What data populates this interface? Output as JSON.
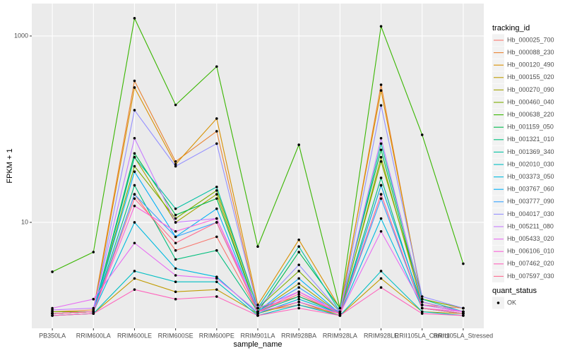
{
  "chart_data": {
    "type": "line",
    "x_label": "sample_name",
    "y_label": "FPKM + 1",
    "y_scale": "log",
    "grid": true,
    "legend_title": "tracking_id",
    "legend_position": "right",
    "legend2_title": "quant_status",
    "legend2_entries": [
      "OK"
    ],
    "point_color": "#000000",
    "categories": [
      "PB350LA",
      "RRIM600LA",
      "RRIM600LE",
      "RRIM600SE",
      "RRIM600PE",
      "RRIM901LA",
      "RRIM928BA",
      "RRIM928LA",
      "RRIM928LE",
      "RRII105LA_Control",
      "RRII105LA_Stressed"
    ],
    "ylim": [
      0.73,
      2230
    ],
    "yticks": [
      10,
      1000
    ],
    "series": [
      {
        "name": "Hb_000025_700",
        "color": "#F8766D",
        "values": [
          1.05,
          1.1,
          20,
          5,
          7,
          1.1,
          1.3,
          1.05,
          25,
          1.3,
          1.2
        ]
      },
      {
        "name": "Hb_000088_230",
        "color": "#EA8331",
        "values": [
          1.1,
          1.15,
          330,
          45,
          95,
          1.2,
          1.6,
          1.1,
          300,
          1.4,
          1.1
        ]
      },
      {
        "name": "Hb_000120_490",
        "color": "#D89000",
        "values": [
          1.05,
          1.1,
          280,
          42,
          130,
          1.3,
          6.5,
          1.2,
          260,
          1.5,
          1.2
        ]
      },
      {
        "name": "Hb_000155_020",
        "color": "#C09B00",
        "values": [
          1.0,
          1.05,
          2.5,
          1.8,
          1.9,
          1.05,
          1.4,
          1.0,
          2.5,
          1.1,
          1.05
        ]
      },
      {
        "name": "Hb_000270_090",
        "color": "#A3A500",
        "values": [
          1.05,
          1.1,
          50,
          10,
          20,
          1.1,
          2.2,
          1.05,
          50,
          1.3,
          1.1
        ]
      },
      {
        "name": "Hb_000460_040",
        "color": "#7CAE00",
        "values": [
          1.1,
          1.1,
          40,
          11,
          22,
          1.2,
          3,
          1.1,
          45,
          1.5,
          1.2
        ]
      },
      {
        "name": "Hb_000638_220",
        "color": "#39B600",
        "values": [
          2.95,
          4.8,
          1550,
          182,
          470,
          5.5,
          68,
          1.2,
          1270,
          87,
          3.6
        ]
      },
      {
        "name": "Hb_001159_050",
        "color": "#00BB4E",
        "values": [
          1.05,
          1.1,
          55,
          12,
          18,
          1.1,
          4.8,
          1.2,
          60,
          1.4,
          1.1
        ]
      },
      {
        "name": "Hb_001321_010",
        "color": "#00BF7D",
        "values": [
          1.05,
          1.1,
          25,
          4,
          5,
          1.1,
          1.6,
          1.05,
          30,
          1.2,
          1.05
        ]
      },
      {
        "name": "Hb_001369_340",
        "color": "#00C1A3",
        "values": [
          1.05,
          1.1,
          50,
          14,
          24,
          1.2,
          5.5,
          1.1,
          70,
          1.5,
          1.1
        ]
      },
      {
        "name": "Hb_002010_030",
        "color": "#00BFC4",
        "values": [
          1.0,
          1.05,
          3,
          2.3,
          2.3,
          1.0,
          1.3,
          1.0,
          3,
          1.1,
          1.0
        ]
      },
      {
        "name": "Hb_003373_050",
        "color": "#00BAE0",
        "values": [
          1.05,
          1.1,
          10,
          3.2,
          2.6,
          1.05,
          1.5,
          1.05,
          11,
          1.2,
          1.05
        ]
      },
      {
        "name": "Hb_003767_060",
        "color": "#00B0F6",
        "values": [
          1.05,
          1.1,
          35,
          7,
          14,
          1.1,
          2.5,
          1.05,
          25,
          1.3,
          1.1
        ]
      },
      {
        "name": "Hb_003777_090",
        "color": "#35A2FF",
        "values": [
          1.05,
          1.1,
          20,
          7,
          10,
          1.1,
          2,
          1.05,
          18,
          1.2,
          1.05
        ]
      },
      {
        "name": "Hb_004017_030",
        "color": "#9590FF",
        "values": [
          1.05,
          1.1,
          160,
          40,
          70,
          1.2,
          3.5,
          1.1,
          180,
          1.6,
          1.2
        ]
      },
      {
        "name": "Hb_005211_080",
        "color": "#C77CFF",
        "values": [
          1.15,
          1.2,
          80,
          10,
          11,
          1.2,
          1.8,
          1.1,
          80,
          1.4,
          1.1
        ]
      },
      {
        "name": "Hb_005433_020",
        "color": "#E76BF3",
        "values": [
          1.2,
          1.5,
          6,
          2.7,
          2.5,
          1.1,
          1.4,
          1.05,
          8,
          1.3,
          1.1
        ]
      },
      {
        "name": "Hb_006106_010",
        "color": "#FA62DB",
        "values": [
          1.05,
          1.1,
          15,
          8,
          11,
          1.1,
          1.8,
          1.05,
          20,
          1.2,
          1.1
        ]
      },
      {
        "name": "Hb_007462_020",
        "color": "#FF62BC",
        "values": [
          1.0,
          1.05,
          1.9,
          1.5,
          1.6,
          1.0,
          1.2,
          1.0,
          2,
          1.05,
          1.0
        ]
      },
      {
        "name": "Hb_007597_030",
        "color": "#FF6C91",
        "values": [
          1.05,
          1.1,
          18,
          6,
          10,
          1.1,
          1.7,
          1.05,
          20,
          1.2,
          1.05
        ]
      }
    ]
  }
}
